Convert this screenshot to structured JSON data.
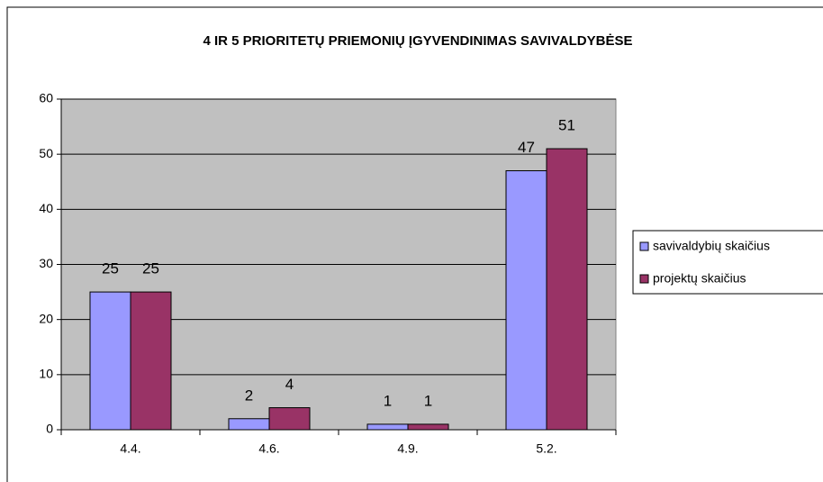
{
  "chart_data": {
    "type": "bar",
    "title": "4 IR 5 PRIORITETŲ PRIEMONIŲ ĮGYVENDINIMAS SAVIVALDYBĖSE",
    "categories": [
      "4.4.",
      "4.6.",
      "4.9.",
      "5.2."
    ],
    "series": [
      {
        "name": "savivaldybių skaičius",
        "color": "#9999ff",
        "values": [
          25,
          2,
          1,
          47
        ]
      },
      {
        "name": "projektų skaičius",
        "color": "#993366",
        "values": [
          25,
          4,
          1,
          51
        ]
      }
    ],
    "ylim": [
      0,
      60
    ],
    "yticks": [
      0,
      10,
      20,
      30,
      40,
      50,
      60
    ],
    "grid": true,
    "plot_background": "#c0c0c0",
    "legend": "right"
  }
}
